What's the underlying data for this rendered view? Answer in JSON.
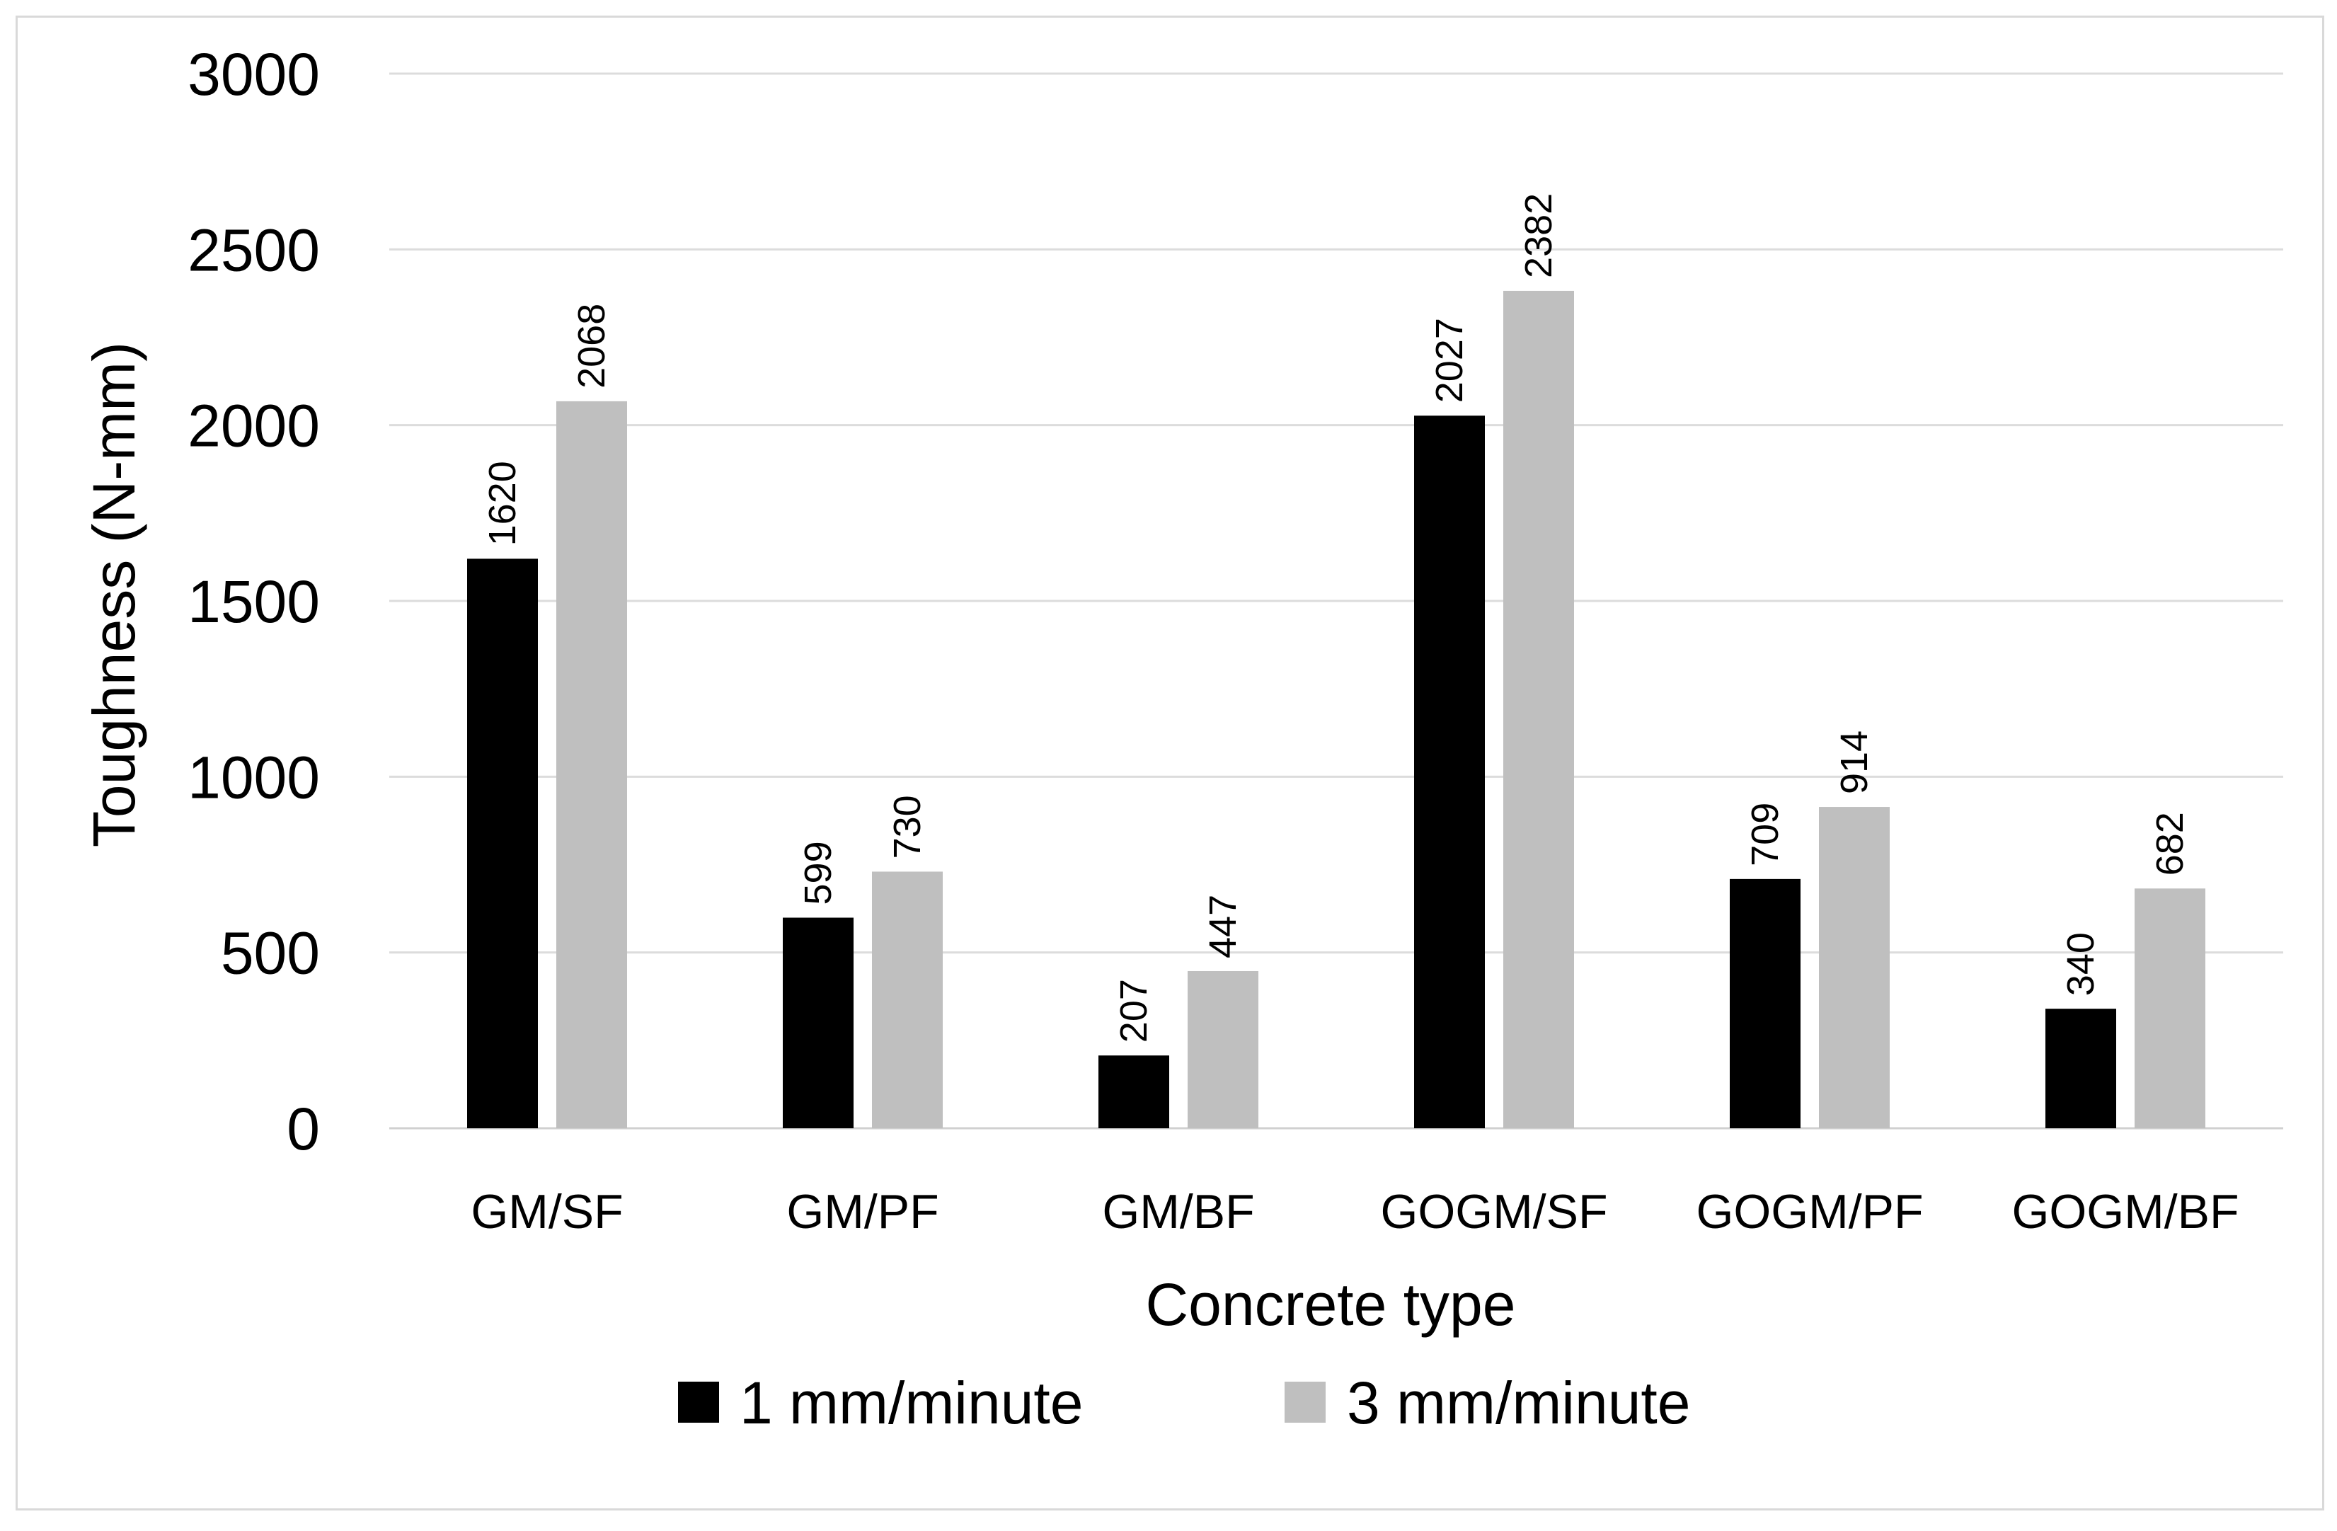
{
  "chart_data": {
    "type": "bar",
    "title": "",
    "xlabel": "Concrete type",
    "ylabel": "Toughness (N-mm)",
    "ylim": [
      0,
      3000
    ],
    "yticks": [
      0,
      500,
      1000,
      1500,
      2000,
      2500,
      3000
    ],
    "grid": true,
    "legend_position": "bottom",
    "categories": [
      "GM/SF",
      "GM/PF",
      "GM/BF",
      "GOGM/SF",
      "GOGM/PF",
      "GOGM/BF"
    ],
    "series": [
      {
        "name": "1 mm/minute",
        "color": "#000000",
        "values": [
          1620,
          599,
          207,
          2027,
          709,
          340
        ]
      },
      {
        "name": "3 mm/minute",
        "color": "#bfbfbf",
        "values": [
          2068,
          730,
          447,
          2382,
          914,
          682
        ]
      }
    ]
  }
}
